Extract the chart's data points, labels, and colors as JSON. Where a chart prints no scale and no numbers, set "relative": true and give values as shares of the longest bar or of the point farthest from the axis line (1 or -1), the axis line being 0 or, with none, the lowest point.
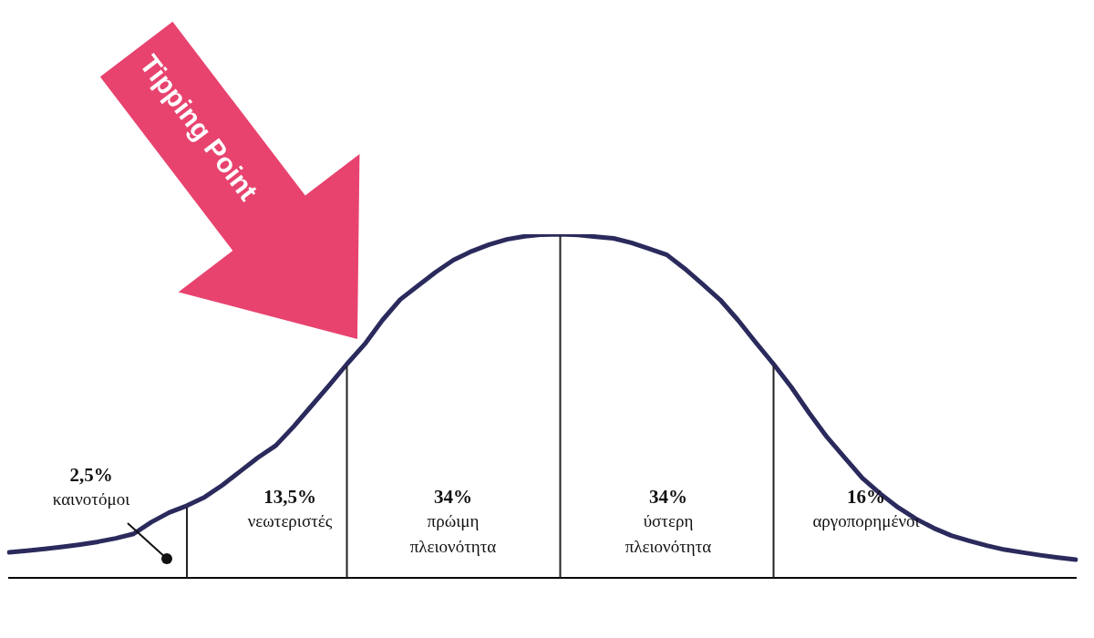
{
  "chart_data": {
    "type": "line",
    "relative": true,
    "grid": false,
    "legend": false,
    "marker": "none",
    "line_style": "solid",
    "categories": [
      null,
      null,
      null,
      null,
      null,
      null,
      null,
      null,
      null,
      null,
      null,
      null,
      null,
      null,
      null,
      null,
      null,
      null,
      null,
      null,
      null,
      null,
      null,
      null,
      null,
      null,
      null,
      null,
      null,
      null,
      null,
      null,
      null,
      null,
      null,
      null,
      null,
      null,
      null,
      null,
      null,
      null,
      null,
      null,
      null,
      null,
      null,
      null,
      null,
      null,
      null,
      null,
      null,
      null,
      null,
      null,
      null,
      null,
      null,
      null,
      null
    ],
    "series": [
      {
        "color": "#2b2a5c",
        "values": [
          0.074,
          0.079,
          0.084,
          0.09,
          0.097,
          0.105,
          0.115,
          0.128,
          0.162,
          0.19,
          0.21,
          0.235,
          0.27,
          0.31,
          0.35,
          0.385,
          0.44,
          0.5,
          0.56,
          0.622,
          0.68,
          0.75,
          0.81,
          0.85,
          0.89,
          0.925,
          0.95,
          0.97,
          0.985,
          0.994,
          0.999,
          1,
          0.998,
          0.993,
          0.988,
          0.975,
          0.958,
          0.94,
          0.9,
          0.855,
          0.809,
          0.75,
          0.685,
          0.622,
          0.555,
          0.48,
          0.41,
          0.35,
          0.29,
          0.245,
          0.205,
          0.172,
          0.145,
          0.123,
          0.108,
          0.094,
          0.082,
          0.074,
          0.066,
          0.059,
          0.053
        ]
      }
    ],
    "annotations": [
      "Tipping Point",
      "2,5%\nκαινοτόμοι",
      "13,5%\nνεωτεριστές",
      "34%\nπρώιμη\nπλειονότητα",
      "34%\nύστερη\nπλειονότητα",
      "16%\nαργοπορημένοι"
    ]
  }
}
